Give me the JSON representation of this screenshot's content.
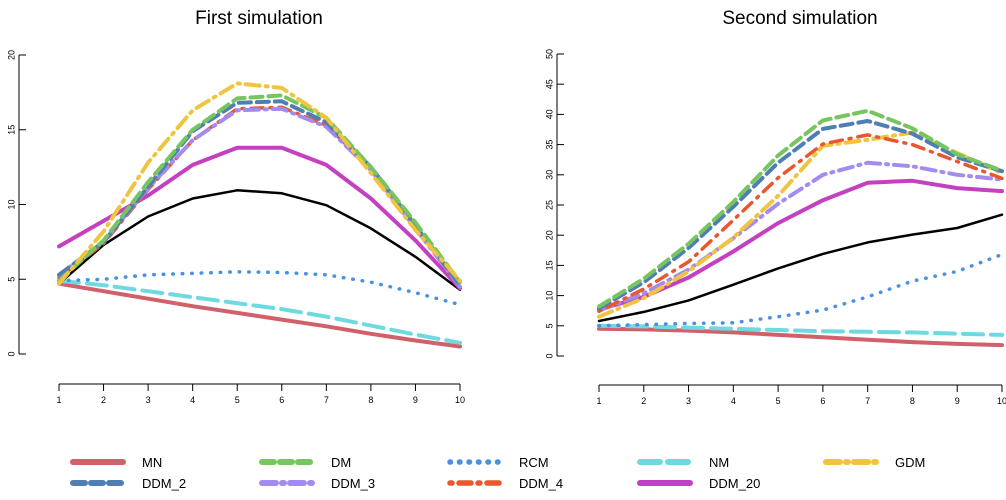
{
  "chart_data": [
    {
      "type": "line",
      "title": "First simulation",
      "x": [
        1,
        2,
        3,
        4,
        5,
        6,
        7,
        8,
        9,
        10
      ],
      "ylim": [
        0,
        20
      ],
      "yticks": [
        0,
        5,
        10,
        15,
        20
      ],
      "xticks": [
        1,
        2,
        3,
        4,
        5,
        6,
        7,
        8,
        9,
        10
      ],
      "series": [
        {
          "key": "MN",
          "values": [
            4.7,
            4.2,
            3.7,
            3.2,
            2.75,
            2.3,
            1.85,
            1.35,
            0.9,
            0.5
          ]
        },
        {
          "key": "NM",
          "values": [
            4.9,
            4.6,
            4.2,
            3.8,
            3.4,
            3.0,
            2.5,
            1.9,
            1.3,
            0.75
          ]
        },
        {
          "key": "RCM",
          "values": [
            4.9,
            5.0,
            5.3,
            5.4,
            5.5,
            5.45,
            5.3,
            4.8,
            4.1,
            3.3
          ]
        },
        {
          "key": "black",
          "values": [
            4.7,
            7.3,
            9.2,
            10.4,
            10.95,
            10.75,
            9.95,
            8.4,
            6.5,
            4.3
          ]
        },
        {
          "key": "DDM_20",
          "values": [
            7.2,
            8.9,
            10.6,
            12.65,
            13.8,
            13.8,
            12.65,
            10.4,
            7.6,
            4.4
          ]
        },
        {
          "key": "DDM_4",
          "values": [
            5.1,
            7.4,
            11.0,
            14.3,
            16.4,
            16.5,
            15.3,
            12.4,
            8.5,
            4.5
          ]
        },
        {
          "key": "DDM_3",
          "values": [
            5.3,
            7.5,
            11.1,
            14.3,
            16.3,
            16.4,
            15.2,
            12.3,
            8.4,
            4.5
          ]
        },
        {
          "key": "DDM_2",
          "values": [
            5.3,
            7.5,
            11.2,
            14.9,
            16.8,
            16.9,
            15.5,
            12.5,
            8.6,
            4.6
          ]
        },
        {
          "key": "DM",
          "values": [
            4.9,
            7.6,
            11.5,
            15.0,
            17.1,
            17.3,
            15.8,
            12.5,
            8.8,
            4.8
          ]
        },
        {
          "key": "GDM",
          "values": [
            4.7,
            8.2,
            12.8,
            16.3,
            18.1,
            17.8,
            15.8,
            12.1,
            8.3,
            4.9
          ]
        }
      ]
    },
    {
      "type": "line",
      "title": "Second simulation",
      "x": [
        1,
        2,
        3,
        4,
        5,
        6,
        7,
        8,
        9,
        10
      ],
      "ylim": [
        0,
        50
      ],
      "yticks": [
        0,
        5,
        10,
        15,
        20,
        25,
        30,
        35,
        40,
        45,
        50
      ],
      "xticks": [
        1,
        2,
        3,
        4,
        5,
        6,
        7,
        8,
        9,
        10
      ],
      "series": [
        {
          "key": "MN",
          "values": [
            4.5,
            4.4,
            4.2,
            3.9,
            3.5,
            3.1,
            2.7,
            2.3,
            2.0,
            1.8
          ]
        },
        {
          "key": "NM",
          "values": [
            5.0,
            4.9,
            4.7,
            4.5,
            4.3,
            4.1,
            4.0,
            3.9,
            3.7,
            3.5
          ]
        },
        {
          "key": "RCM",
          "values": [
            5.0,
            5.2,
            5.4,
            5.5,
            6.5,
            7.6,
            9.8,
            12.4,
            14.0,
            16.8
          ]
        },
        {
          "key": "black",
          "values": [
            5.8,
            7.3,
            9.2,
            11.8,
            14.5,
            16.9,
            18.8,
            20.1,
            21.2,
            23.4
          ]
        },
        {
          "key": "DDM_20",
          "values": [
            7.7,
            9.8,
            13.0,
            17.3,
            22.0,
            25.8,
            28.7,
            29.0,
            27.8,
            27.3
          ]
        },
        {
          "key": "DDM_3",
          "values": [
            7.5,
            10.4,
            14.3,
            19.5,
            25.2,
            30.0,
            32.0,
            31.4,
            30.0,
            29.2
          ]
        },
        {
          "key": "GDM",
          "values": [
            6.5,
            9.6,
            14.0,
            19.6,
            26.5,
            34.8,
            35.8,
            37.0,
            33.6,
            30.3
          ]
        },
        {
          "key": "DDM_4",
          "values": [
            7.4,
            11.1,
            15.6,
            22.5,
            29.5,
            35.1,
            36.6,
            35.0,
            32.2,
            29.4
          ]
        },
        {
          "key": "DDM_2",
          "values": [
            7.9,
            12.2,
            17.9,
            24.7,
            32.0,
            37.6,
            38.9,
            36.8,
            32.9,
            30.6
          ]
        },
        {
          "key": "DM",
          "values": [
            8.2,
            12.8,
            18.6,
            25.5,
            33.2,
            39.0,
            40.6,
            37.7,
            33.4,
            30.7
          ]
        }
      ]
    }
  ],
  "legend": {
    "items": [
      {
        "key": "MN",
        "label": "MN",
        "color": "#d2606b",
        "style": "solid",
        "width": 4
      },
      {
        "key": "DDM_2",
        "label": "DDM_2",
        "color": "#4f7fb2",
        "style": "dash",
        "width": 4
      },
      {
        "key": "DM",
        "label": "DM",
        "color": "#76c55f",
        "style": "dash",
        "width": 4
      },
      {
        "key": "DDM_3",
        "label": "DDM_3",
        "color": "#a48bf0",
        "style": "dashdot",
        "width": 4
      },
      {
        "key": "RCM",
        "label": "RCM",
        "color": "#4a90e2",
        "style": "dot",
        "width": 3.5
      },
      {
        "key": "DDM_4",
        "label": "DDM_4",
        "color": "#e8572d",
        "style": "dotdash",
        "width": 3.5
      },
      {
        "key": "NM",
        "label": "NM",
        "color": "#6fd9e0",
        "style": "longdash",
        "width": 4
      },
      {
        "key": "DDM_20",
        "label": "DDM_20",
        "color": "#c540c0",
        "style": "solid",
        "width": 4
      },
      {
        "key": "GDM",
        "label": "GDM",
        "color": "#f0c43e",
        "style": "dashdot",
        "width": 4
      }
    ],
    "unlabeled": [
      {
        "key": "black",
        "color": "#000000",
        "style": "solid",
        "width": 2.5
      }
    ]
  }
}
